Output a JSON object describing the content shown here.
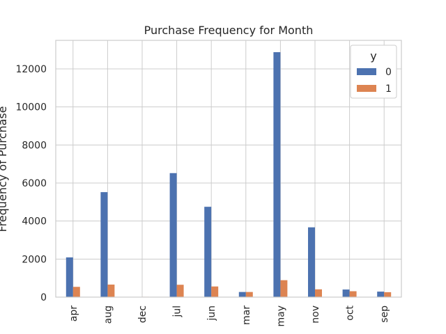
{
  "chart_data": {
    "type": "bar",
    "title": "Purchase Frequency for Month",
    "xlabel": "",
    "ylabel": "Frequency of Purchase",
    "categories": [
      "apr",
      "aug",
      "dec",
      "jul",
      "jun",
      "mar",
      "may",
      "nov",
      "oct",
      "sep"
    ],
    "series": [
      {
        "name": "0",
        "color": "#4c72b0",
        "values": [
          2090,
          5520,
          10,
          6520,
          4750,
          270,
          12880,
          3670,
          400,
          290
        ]
      },
      {
        "name": "1",
        "color": "#dd8452",
        "values": [
          540,
          660,
          20,
          650,
          560,
          270,
          890,
          410,
          310,
          260
        ]
      }
    ],
    "legend_title": "y",
    "legend_position": "top-right",
    "ylim": [
      0,
      13500
    ],
    "yticks": [
      0,
      2000,
      4000,
      6000,
      8000,
      10000,
      12000
    ],
    "grid": true
  }
}
